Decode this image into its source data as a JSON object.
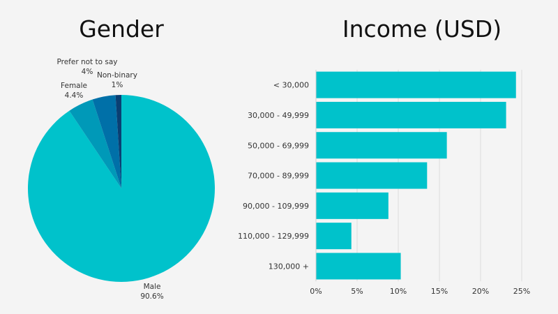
{
  "chart_data": [
    {
      "type": "pie",
      "title": "Gender",
      "slices": [
        {
          "label": "Male",
          "value_label": "90.6%",
          "value": 90.6,
          "color": "#00c2cb"
        },
        {
          "label": "Female",
          "value_label": "4.4%",
          "value": 4.4,
          "color": "#0099b8"
        },
        {
          "label": "Prefer not to say",
          "value_label": "4%",
          "value": 4.0,
          "color": "#0070a8"
        },
        {
          "label": "Non-binary",
          "value_label": "1%",
          "value": 1.0,
          "color": "#0a3f73"
        }
      ]
    },
    {
      "type": "bar",
      "orientation": "horizontal",
      "title": "Income (USD)",
      "categories": [
        "< 30,000",
        "30,000 - 49,999",
        "50,000 - 69,999",
        "70,000 - 89,999",
        "90,000 - 109,999",
        "110,000 - 129,999",
        "130,000 +"
      ],
      "values": [
        24.3,
        23.1,
        15.9,
        13.5,
        8.8,
        4.3,
        10.3
      ],
      "xlim": [
        0,
        25
      ],
      "xticks": [
        "0%",
        "5%",
        "10%",
        "15%",
        "20%",
        "25%"
      ],
      "bar_color": "#00c2cb",
      "grid": true
    }
  ]
}
